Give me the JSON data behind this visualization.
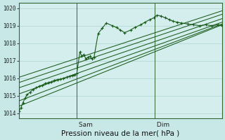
{
  "bg_color": "#c8e8e8",
  "plot_bg": "#d4eeee",
  "grid_color": "#b0d4d4",
  "vline_color": "#336633",
  "line_color": "#1a5c1a",
  "xlabel": "Pression niveau de la mer( hPa )",
  "ylim": [
    1013.7,
    1020.3
  ],
  "yticks": [
    1014,
    1015,
    1016,
    1017,
    1018,
    1019,
    1020
  ],
  "day_labels": [
    " Sam",
    " Dim"
  ],
  "day_positions": [
    0.285,
    0.67
  ],
  "xlabel_fontsize": 7.5,
  "series": {
    "main_jagged": {
      "x": [
        0.0,
        0.01,
        0.02,
        0.03,
        0.04,
        0.055,
        0.07,
        0.085,
        0.1,
        0.115,
        0.13,
        0.145,
        0.16,
        0.175,
        0.19,
        0.205,
        0.22,
        0.235,
        0.25,
        0.265,
        0.275,
        0.285,
        0.3,
        0.31,
        0.32,
        0.33,
        0.34,
        0.35,
        0.36,
        0.37,
        0.39,
        0.41,
        0.43,
        0.46,
        0.48,
        0.5,
        0.52,
        0.55,
        0.57,
        0.6,
        0.62,
        0.645,
        0.665,
        0.68,
        0.7,
        0.72,
        0.74,
        0.76,
        0.78,
        0.8,
        0.83,
        0.86,
        0.89,
        0.92,
        0.95,
        0.98,
        1.0
      ],
      "y": [
        1014.1,
        1014.3,
        1014.6,
        1014.85,
        1015.05,
        1015.2,
        1015.35,
        1015.45,
        1015.55,
        1015.6,
        1015.7,
        1015.75,
        1015.8,
        1015.88,
        1015.92,
        1015.95,
        1015.98,
        1016.05,
        1016.1,
        1016.15,
        1016.2,
        1016.25,
        1017.5,
        1017.25,
        1017.35,
        1017.1,
        1017.2,
        1017.25,
        1017.1,
        1017.2,
        1018.55,
        1018.85,
        1019.15,
        1019.0,
        1018.9,
        1018.75,
        1018.6,
        1018.75,
        1018.9,
        1019.05,
        1019.2,
        1019.35,
        1019.45,
        1019.6,
        1019.55,
        1019.45,
        1019.35,
        1019.25,
        1019.2,
        1019.15,
        1019.1,
        1019.05,
        1019.0,
        1019.05,
        1019.0,
        1019.05,
        1019.0
      ]
    },
    "trend_lines": [
      {
        "x": [
          0.0,
          1.0
        ],
        "y": [
          1014.4,
          1019.05
        ]
      },
      {
        "x": [
          0.0,
          1.0
        ],
        "y": [
          1014.7,
          1019.1
        ]
      },
      {
        "x": [
          0.0,
          1.0
        ],
        "y": [
          1015.1,
          1019.2
        ]
      },
      {
        "x": [
          0.0,
          1.0
        ],
        "y": [
          1015.45,
          1019.4
        ]
      },
      {
        "x": [
          0.0,
          1.0
        ],
        "y": [
          1015.75,
          1019.65
        ]
      },
      {
        "x": [
          0.0,
          1.0
        ],
        "y": [
          1016.05,
          1019.85
        ]
      }
    ]
  }
}
